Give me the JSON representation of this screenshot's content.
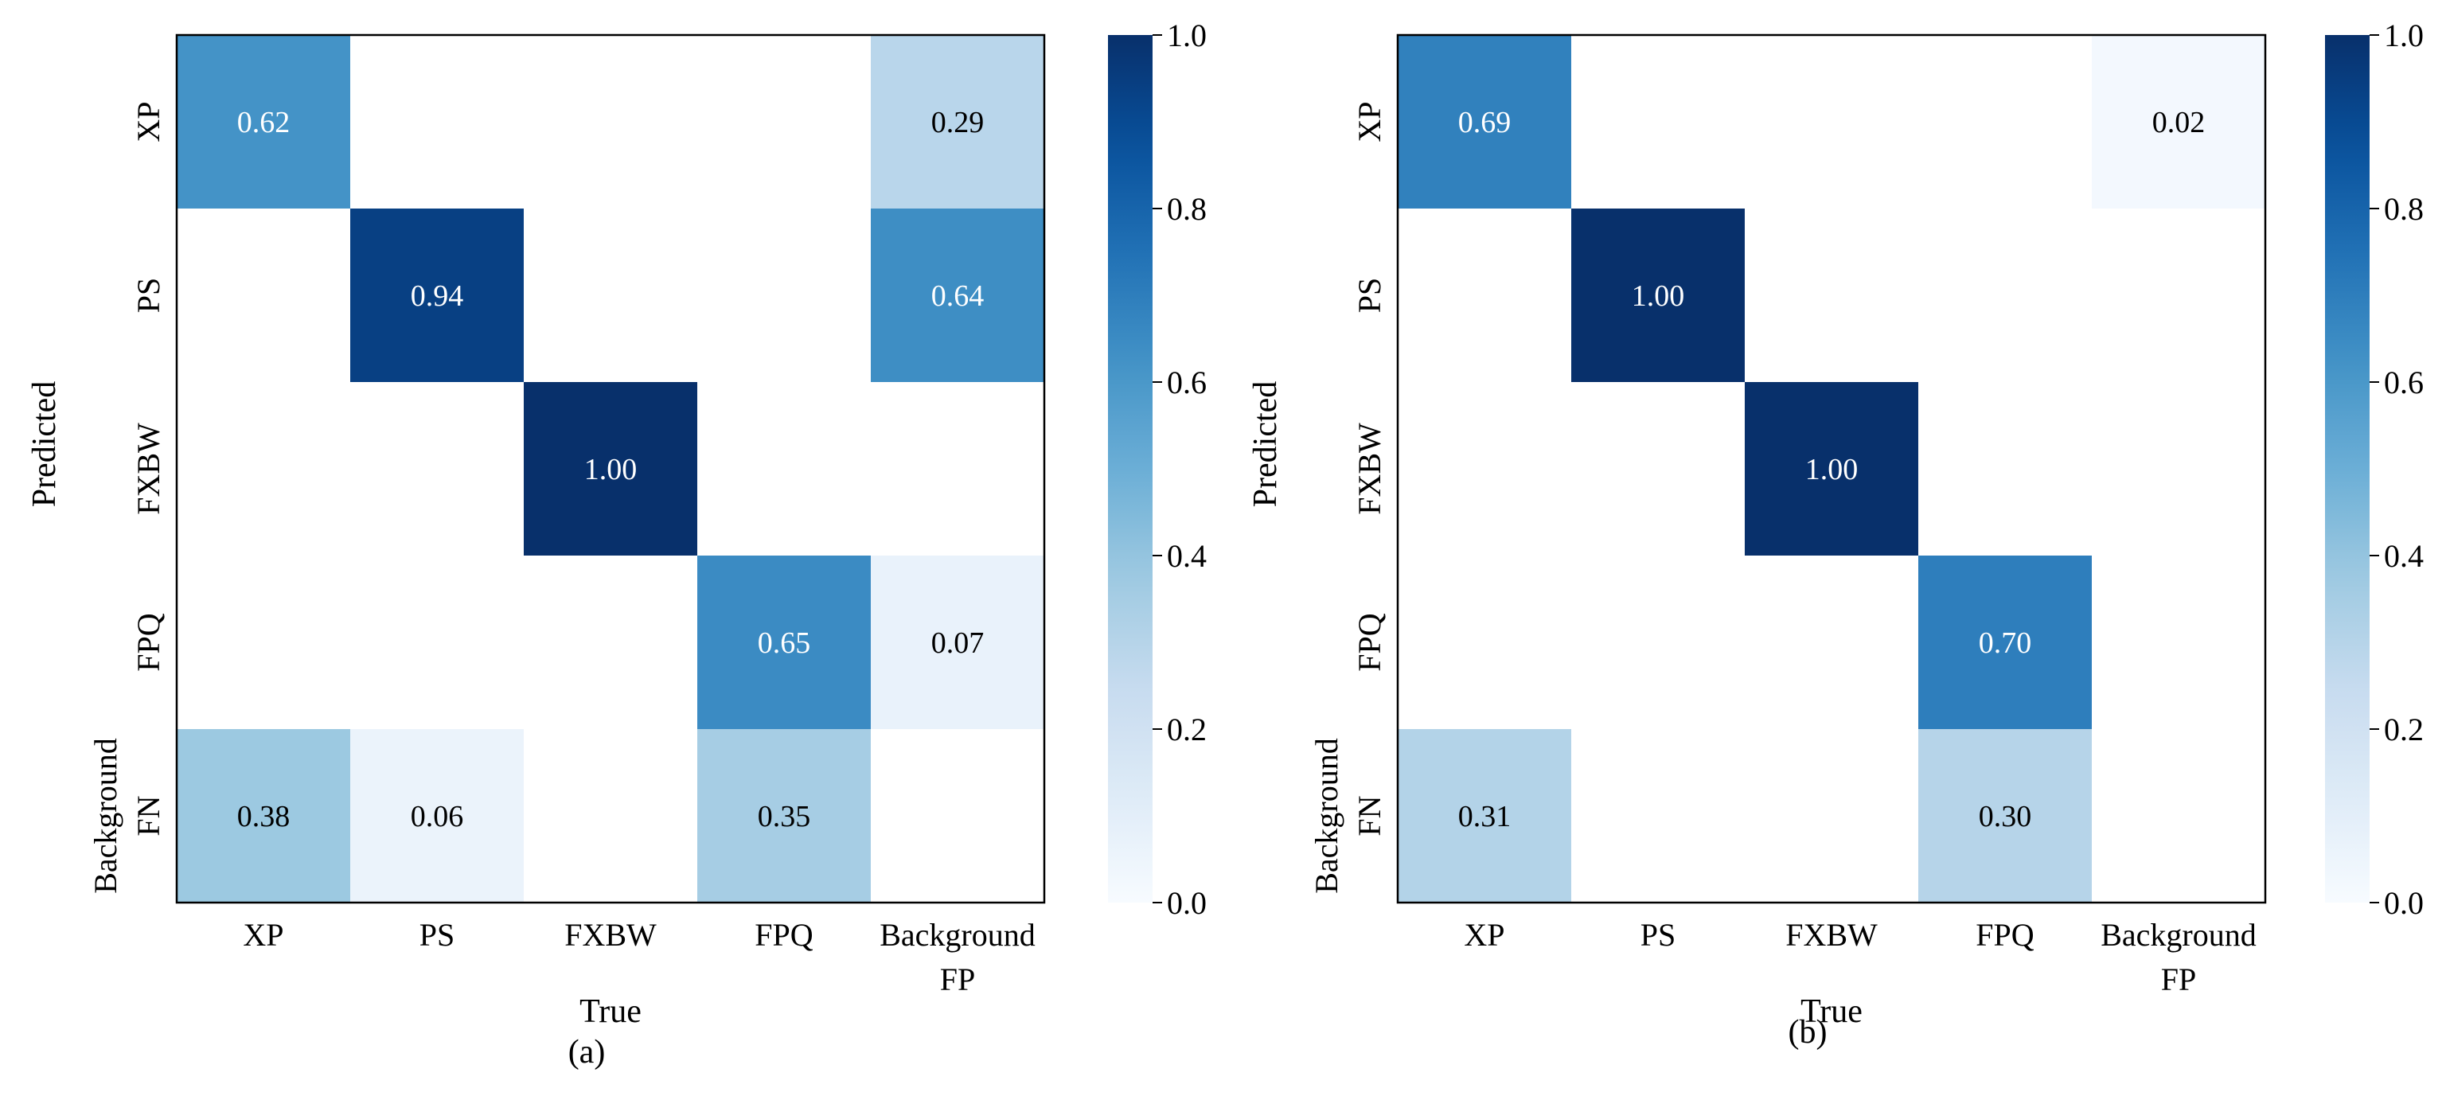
{
  "chart_data": [
    {
      "type": "heatmap",
      "panel_label": "(a)",
      "xlabel": "True",
      "ylabel": "Predicted",
      "x_categories": [
        [
          "XP"
        ],
        [
          "PS"
        ],
        [
          "FXBW"
        ],
        [
          "FPQ"
        ],
        [
          "Background",
          "FP"
        ]
      ],
      "y_categories": [
        [
          "XP"
        ],
        [
          "PS"
        ],
        [
          "FXBW"
        ],
        [
          "FPQ"
        ],
        [
          "Background",
          "FN"
        ]
      ],
      "values": [
        [
          0.62,
          null,
          null,
          null,
          0.29
        ],
        [
          null,
          0.94,
          null,
          null,
          0.64
        ],
        [
          null,
          null,
          1.0,
          null,
          null
        ],
        [
          null,
          null,
          null,
          0.65,
          0.07
        ],
        [
          0.38,
          0.06,
          null,
          0.35,
          null
        ]
      ],
      "colorbar": {
        "range": [
          0.0,
          1.0
        ],
        "ticks": [
          "0.0",
          "0.2",
          "0.4",
          "0.6",
          "0.8",
          "1.0"
        ],
        "colormap": "Blues"
      }
    },
    {
      "type": "heatmap",
      "panel_label": "(b)",
      "xlabel": "True",
      "ylabel": "Predicted",
      "x_categories": [
        [
          "XP"
        ],
        [
          "PS"
        ],
        [
          "FXBW"
        ],
        [
          "FPQ"
        ],
        [
          "Background",
          "FP"
        ]
      ],
      "y_categories": [
        [
          "XP"
        ],
        [
          "PS"
        ],
        [
          "FXBW"
        ],
        [
          "FPQ"
        ],
        [
          "Background",
          "FN"
        ]
      ],
      "values": [
        [
          0.69,
          null,
          null,
          null,
          0.02
        ],
        [
          null,
          1.0,
          null,
          null,
          null
        ],
        [
          null,
          null,
          1.0,
          null,
          null
        ],
        [
          null,
          null,
          null,
          0.7,
          null
        ],
        [
          0.31,
          null,
          null,
          0.3,
          null
        ]
      ],
      "colorbar": {
        "range": [
          0.0,
          1.0
        ],
        "ticks": [
          "0.0",
          "0.2",
          "0.4",
          "0.6",
          "0.8",
          "1.0"
        ],
        "colormap": "Blues"
      }
    }
  ]
}
